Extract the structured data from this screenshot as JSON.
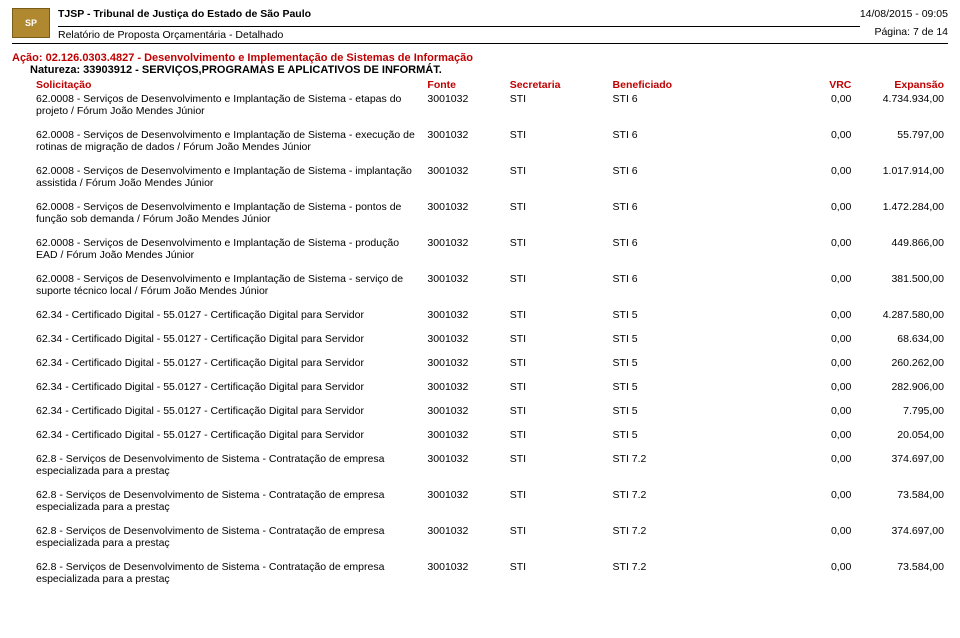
{
  "header": {
    "org": "TJSP - Tribunal de Justiça do Estado de São Paulo",
    "report": "Relatório de Proposta Orçamentária - Detalhado",
    "datetime": "14/08/2015 - 09:05",
    "page": "Página: 7 de 14"
  },
  "action": "Ação: 02.126.0303.4827 - Desenvolvimento e Implementação de Sistemas de Informação",
  "nature": "Natureza: 33903912 - SERVIÇOS,PROGRAMAS E APLICATIVOS DE INFORMÁT.",
  "columns": {
    "solicitacao": "Solicitação",
    "fonte": "Fonte",
    "secretaria": "Secretaria",
    "beneficiado": "Beneficiado",
    "vrc": "VRC",
    "expansao": "Expansão"
  },
  "rows": [
    {
      "sol": "62.0008 - Serviços de Desenvolvimento e Implantação de Sistema - etapas do projeto / Fórum João Mendes Júnior",
      "fonte": "3001032",
      "secr": "STI",
      "benef": "STI 6",
      "vrc": "0,00",
      "exp": "4.734.934,00"
    },
    {
      "sol": "62.0008 - Serviços de Desenvolvimento e Implantação de Sistema - execução de rotinas de migração de dados / Fórum João Mendes Júnior",
      "fonte": "3001032",
      "secr": "STI",
      "benef": "STI 6",
      "vrc": "0,00",
      "exp": "55.797,00"
    },
    {
      "sol": "62.0008 - Serviços de Desenvolvimento e Implantação de Sistema - implantação assistida / Fórum João Mendes Júnior",
      "fonte": "3001032",
      "secr": "STI",
      "benef": "STI 6",
      "vrc": "0,00",
      "exp": "1.017.914,00"
    },
    {
      "sol": "62.0008 - Serviços de Desenvolvimento e Implantação de Sistema - pontos de função sob demanda / Fórum João Mendes Júnior",
      "fonte": "3001032",
      "secr": "STI",
      "benef": "STI 6",
      "vrc": "0,00",
      "exp": "1.472.284,00"
    },
    {
      "sol": "62.0008 - Serviços de Desenvolvimento e Implantação de Sistema - produção EAD / Fórum João Mendes Júnior",
      "fonte": "3001032",
      "secr": "STI",
      "benef": "STI 6",
      "vrc": "0,00",
      "exp": "449.866,00"
    },
    {
      "sol": "62.0008 - Serviços de Desenvolvimento e Implantação de Sistema - serviço de suporte técnico local / Fórum João Mendes Júnior",
      "fonte": "3001032",
      "secr": "STI",
      "benef": "STI 6",
      "vrc": "0,00",
      "exp": "381.500,00"
    },
    {
      "sol": "62.34 - Certificado Digital - 55.0127 - Certificação Digital para Servidor",
      "fonte": "3001032",
      "secr": "STI",
      "benef": "STI 5",
      "vrc": "0,00",
      "exp": "4.287.580,00"
    },
    {
      "sol": "62.34 - Certificado Digital - 55.0127 - Certificação Digital para Servidor",
      "fonte": "3001032",
      "secr": "STI",
      "benef": "STI 5",
      "vrc": "0,00",
      "exp": "68.634,00"
    },
    {
      "sol": "62.34 - Certificado Digital - 55.0127 - Certificação Digital para Servidor",
      "fonte": "3001032",
      "secr": "STI",
      "benef": "STI 5",
      "vrc": "0,00",
      "exp": "260.262,00"
    },
    {
      "sol": "62.34 - Certificado Digital - 55.0127 - Certificação Digital para Servidor",
      "fonte": "3001032",
      "secr": "STI",
      "benef": "STI 5",
      "vrc": "0,00",
      "exp": "282.906,00"
    },
    {
      "sol": "62.34 - Certificado Digital - 55.0127 - Certificação Digital para Servidor",
      "fonte": "3001032",
      "secr": "STI",
      "benef": "STI 5",
      "vrc": "0,00",
      "exp": "7.795,00"
    },
    {
      "sol": "62.34 - Certificado Digital - 55.0127 - Certificação Digital para Servidor",
      "fonte": "3001032",
      "secr": "STI",
      "benef": "STI 5",
      "vrc": "0,00",
      "exp": "20.054,00"
    },
    {
      "sol": "62.8 - Serviços de Desenvolvimento de Sistema - Contratação de empresa especializada para a prestaç",
      "fonte": "3001032",
      "secr": "STI",
      "benef": "STI 7.2",
      "vrc": "0,00",
      "exp": "374.697,00"
    },
    {
      "sol": "62.8 - Serviços de Desenvolvimento de Sistema - Contratação de empresa especializada para a prestaç",
      "fonte": "3001032",
      "secr": "STI",
      "benef": "STI 7.2",
      "vrc": "0,00",
      "exp": "73.584,00"
    },
    {
      "sol": "62.8 - Serviços de Desenvolvimento de Sistema - Contratação de empresa especializada para a prestaç",
      "fonte": "3001032",
      "secr": "STI",
      "benef": "STI 7.2",
      "vrc": "0,00",
      "exp": "374.697,00"
    },
    {
      "sol": "62.8 - Serviços de Desenvolvimento de Sistema - Contratação de empresa especializada para a prestaç",
      "fonte": "3001032",
      "secr": "STI",
      "benef": "STI 7.2",
      "vrc": "0,00",
      "exp": "73.584,00"
    }
  ]
}
